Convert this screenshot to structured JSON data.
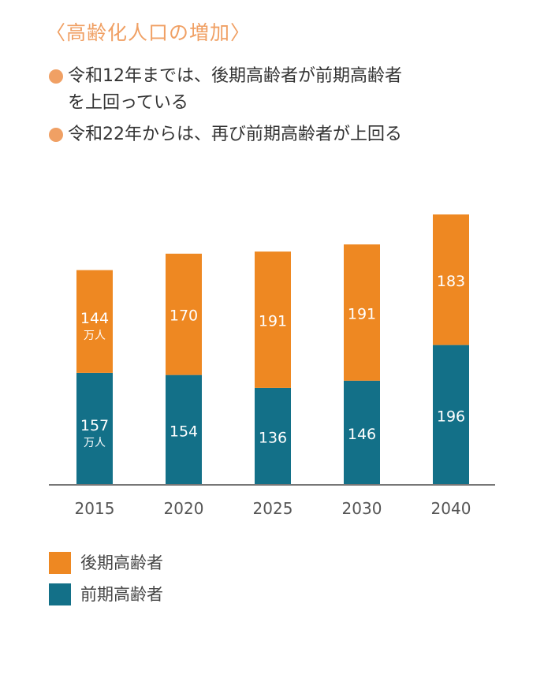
{
  "heading": "〈高齢化人口の増加〉",
  "notes": [
    {
      "line1": "令和12年までは、後期高齢者が前期高齢者",
      "line2": "を上回っている"
    },
    {
      "line1": "令和22年からは、再び前期高齢者が上回る",
      "line2": ""
    }
  ],
  "colors": {
    "accent": "#f0a064",
    "late": "#ee8822",
    "early": "#137088",
    "axis": "#777777"
  },
  "chart_data": {
    "type": "bar",
    "stacked": true,
    "categories": [
      "2015",
      "2020",
      "2025",
      "2030",
      "2040"
    ],
    "series": [
      {
        "name": "前期高齢者",
        "values": [
          157,
          154,
          136,
          146,
          196
        ]
      },
      {
        "name": "後期高齢者",
        "values": [
          144,
          170,
          191,
          191,
          183
        ]
      }
    ],
    "unit_label": "万人",
    "ylim": [
      0,
      379
    ],
    "grid": false,
    "legend": "bottom-left"
  },
  "legend": [
    {
      "label": "後期高齢者"
    },
    {
      "label": "前期高齢者"
    }
  ]
}
